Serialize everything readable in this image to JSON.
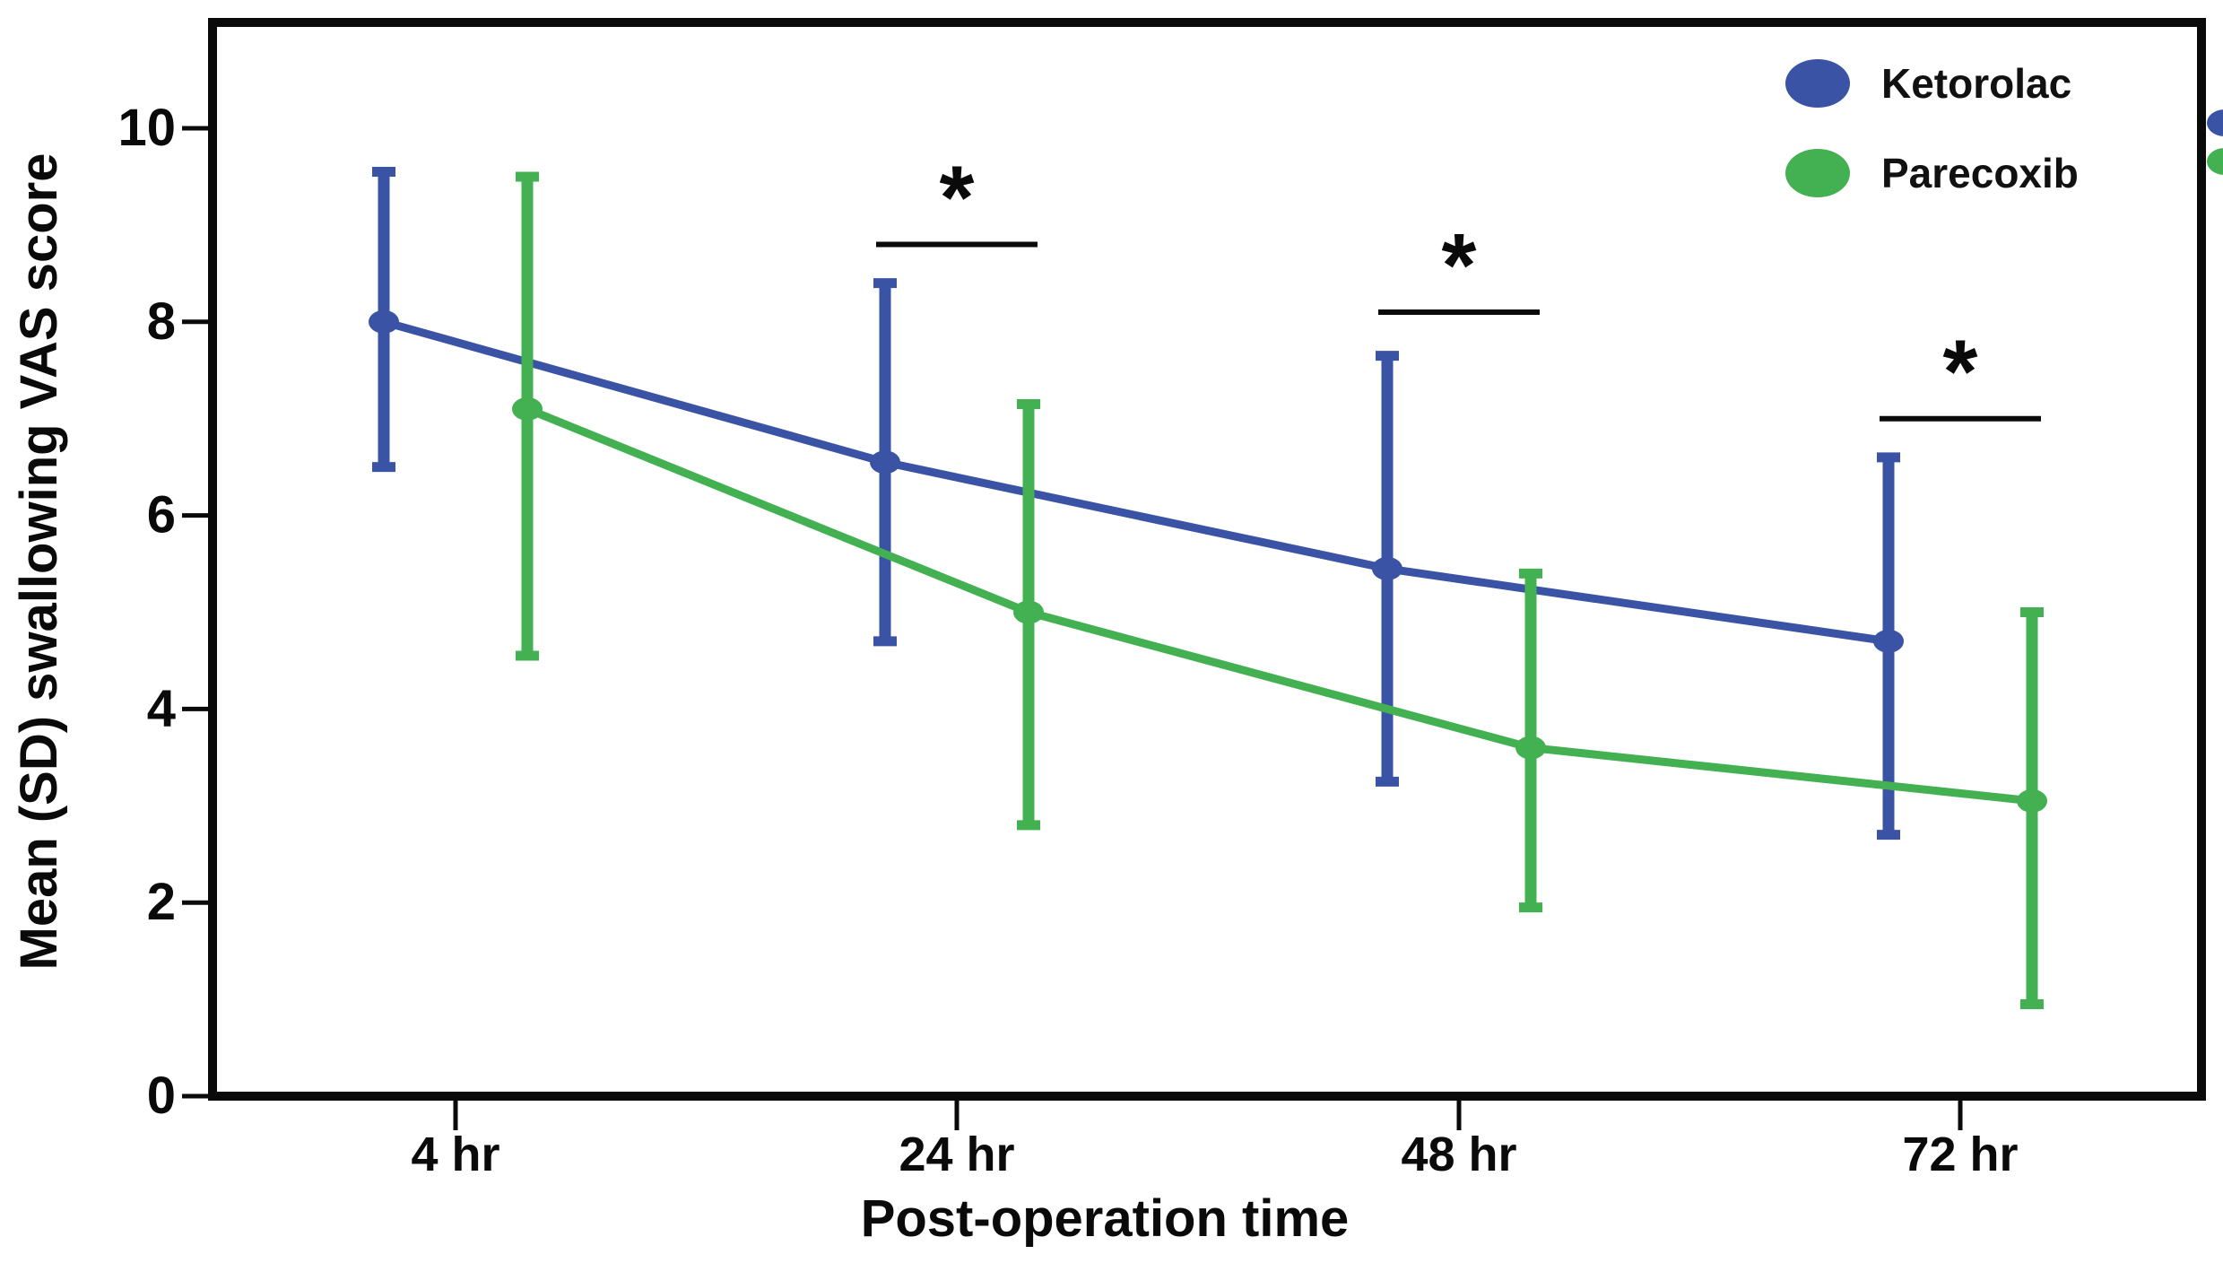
{
  "chart_data": {
    "type": "line",
    "title": "",
    "xlabel": "Post-operation time",
    "ylabel": "Mean (SD) swallowing VAS score",
    "categories": [
      "4 hr",
      "24 hr",
      "48 hr",
      "72 hr"
    ],
    "y_ticks": [
      0,
      2,
      4,
      6,
      8,
      10
    ],
    "ylim": [
      0,
      11.1
    ],
    "grid": false,
    "legend_position": "top-right",
    "error_bars": "SD",
    "series": [
      {
        "name": "Ketorolac",
        "color": "#3a53a5",
        "means": [
          8.0,
          6.55,
          5.45,
          4.7
        ],
        "upper": [
          9.55,
          8.4,
          7.65,
          6.6
        ],
        "lower": [
          6.5,
          4.7,
          3.25,
          2.7
        ]
      },
      {
        "name": "Parecoxib",
        "color": "#43b152",
        "means": [
          7.1,
          5.0,
          3.6,
          3.05
        ],
        "upper": [
          9.5,
          7.15,
          5.4,
          5.0
        ],
        "lower": [
          4.55,
          2.8,
          1.95,
          0.95
        ]
      }
    ],
    "significance_markers": [
      {
        "category": "24 hr",
        "label": "*",
        "bar_y": 8.8
      },
      {
        "category": "48 hr",
        "label": "*",
        "bar_y": 8.1
      },
      {
        "category": "72 hr",
        "label": "*",
        "bar_y": 7.0
      }
    ]
  }
}
